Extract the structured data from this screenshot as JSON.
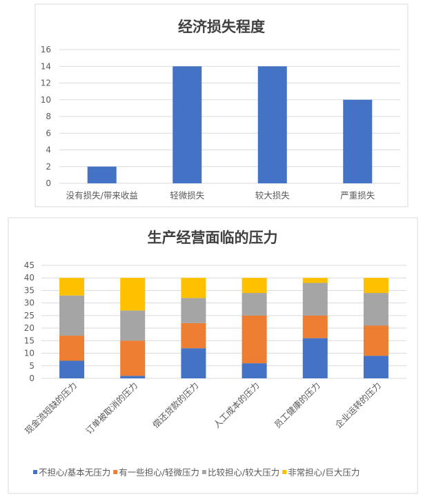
{
  "chart_data": [
    {
      "type": "bar",
      "title": "经济损失程度",
      "categories": [
        "没有损失/带来收益",
        "轻微损失",
        "较大损失",
        "严重损失"
      ],
      "values": [
        2,
        14,
        14,
        10
      ],
      "ylim": [
        0,
        16
      ],
      "yticks": [
        0,
        2,
        4,
        6,
        8,
        10,
        12,
        14,
        16
      ],
      "grid": true,
      "color": "#4472C4"
    },
    {
      "type": "stacked-bar",
      "title": "生产经营面临的压力",
      "categories": [
        "现金流短缺的压力",
        "订单被取消的压力",
        "偿还贷款的压力",
        "人工成本的压力",
        "员工健康的压力",
        "企业运转的压力"
      ],
      "series": [
        {
          "name": "不担心/基本无压力",
          "color": "#4472C4",
          "values": [
            7,
            1,
            12,
            6,
            16,
            9
          ]
        },
        {
          "name": "有一些担心/轻微压力",
          "color": "#ED7D31",
          "values": [
            10,
            14,
            10,
            19,
            9,
            12
          ]
        },
        {
          "name": "比较担心/较大压力",
          "color": "#A5A5A5",
          "values": [
            16,
            12,
            10,
            9,
            13,
            13
          ]
        },
        {
          "name": "非常担心/巨大压力",
          "color": "#FFC000",
          "values": [
            7,
            13,
            8,
            6,
            2,
            6
          ]
        }
      ],
      "ylim": [
        0,
        45
      ],
      "yticks": [
        0,
        5,
        10,
        15,
        20,
        25,
        30,
        35,
        40,
        45
      ],
      "grid": true,
      "legend": "bottom"
    }
  ]
}
